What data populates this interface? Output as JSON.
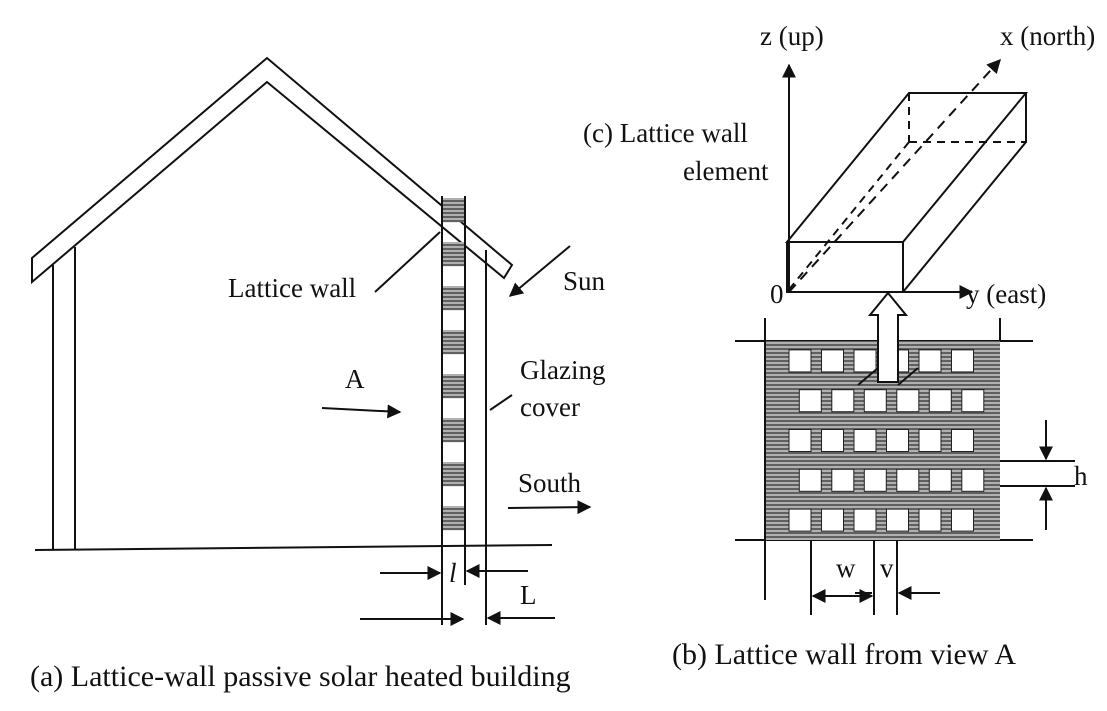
{
  "panel_a": {
    "lattice_wall": "Lattice wall",
    "sun": "Sun",
    "view_a": "A",
    "glazing_line1": "Glazing",
    "glazing_line2": "cover",
    "south": "South",
    "dim_l": "l",
    "dim_L": "L",
    "caption": "(a)  Lattice-wall passive solar heated building"
  },
  "panel_b": {
    "dim_h": "h",
    "dim_w": "w",
    "dim_v": "v",
    "caption": "(b) Lattice wall from view A",
    "grid": {
      "rows": 5,
      "cols": 6
    }
  },
  "panel_c": {
    "title_line1": "(c) Lattice wall",
    "title_line2": "element",
    "axis_z": "z (up)",
    "axis_x": "x (north)",
    "axis_y": "y (east)",
    "origin": "0"
  }
}
